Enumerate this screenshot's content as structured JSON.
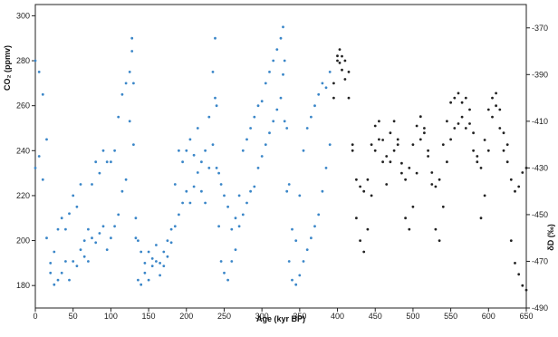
{
  "chart_data": {
    "type": "scatter",
    "title": "",
    "xlabel": "Age (kyr BP)",
    "ylabel_left": "CO₂ (ppmv)",
    "ylabel_right": "δD (‰)",
    "xlim": [
      0,
      650
    ],
    "ylim_left": [
      170,
      305
    ],
    "ylim_right": [
      -490,
      -360
    ],
    "right_axis_inverted": true,
    "grid": false,
    "legend": "none",
    "x_ticks": [
      0,
      50,
      100,
      150,
      200,
      250,
      300,
      350,
      400,
      450,
      500,
      550,
      600,
      650
    ],
    "y_left_ticks": [
      180,
      200,
      220,
      240,
      260,
      280,
      300
    ],
    "y_right_ticks": [
      -370,
      -390,
      -410,
      -430,
      -450,
      -470,
      -490
    ],
    "colors": {
      "recent_series": "#3a86c8",
      "older_series": "#222222",
      "axis": "#222222"
    },
    "series": [
      {
        "axis": "left",
        "color": "#3a86c8",
        "x": [
          0,
          5,
          10,
          15,
          20,
          25,
          30,
          35,
          40,
          45,
          50,
          55,
          60,
          65,
          70,
          75,
          80,
          85,
          90,
          95,
          100,
          105,
          110,
          115,
          120,
          125,
          128,
          130,
          133,
          136,
          140,
          145,
          150,
          155,
          160,
          165,
          170,
          175,
          180,
          185,
          190,
          195,
          200,
          205,
          210,
          215,
          220,
          225,
          230,
          235,
          238,
          240,
          243,
          246,
          250,
          255,
          260,
          265,
          270,
          275,
          280,
          285,
          290,
          295,
          300,
          305,
          310,
          315,
          320,
          325,
          328,
          330,
          333,
          336,
          340,
          345,
          350,
          355,
          360,
          365,
          370,
          375,
          380,
          385,
          390
        ],
        "y": [
          280,
          275,
          265,
          245,
          190,
          195,
          205,
          210,
          205,
          212,
          220,
          215,
          225,
          200,
          205,
          225,
          235,
          230,
          240,
          235,
          235,
          240,
          255,
          265,
          270,
          275,
          290,
          270,
          210,
          200,
          195,
          190,
          195,
          192,
          198,
          190,
          195,
          200,
          205,
          225,
          240,
          235,
          240,
          245,
          238,
          250,
          235,
          240,
          255,
          275,
          290,
          260,
          230,
          225,
          220,
          215,
          205,
          210,
          220,
          240,
          245,
          250,
          255,
          260,
          262,
          270,
          275,
          280,
          285,
          290,
          295,
          280,
          250,
          225,
          205,
          200,
          220,
          240,
          250,
          255,
          260,
          265,
          270,
          268,
          275
        ]
      },
      {
        "axis": "left",
        "color": "#222222",
        "x": [
          395,
          400,
          403,
          406,
          410,
          415,
          420,
          425,
          430,
          435,
          440,
          445,
          450,
          455,
          460,
          465,
          470,
          475,
          480,
          485,
          490,
          495,
          500,
          505,
          510,
          515,
          520,
          525,
          530,
          535,
          540,
          545,
          550,
          555,
          560,
          565,
          570,
          575,
          580,
          585,
          590,
          595,
          600,
          605,
          610,
          615,
          620,
          625,
          630,
          635,
          640,
          645,
          650
        ],
        "y": [
          270,
          280,
          285,
          282,
          280,
          275,
          240,
          210,
          200,
          195,
          205,
          220,
          240,
          245,
          235,
          225,
          235,
          240,
          245,
          230,
          210,
          205,
          215,
          230,
          245,
          250,
          240,
          225,
          205,
          200,
          215,
          235,
          245,
          250,
          252,
          255,
          250,
          252,
          240,
          235,
          210,
          220,
          240,
          255,
          260,
          250,
          240,
          235,
          200,
          190,
          185,
          180,
          178
        ]
      },
      {
        "axis": "right",
        "color": "#3a86c8",
        "x": [
          0,
          5,
          10,
          15,
          20,
          25,
          30,
          35,
          40,
          45,
          50,
          55,
          60,
          65,
          70,
          75,
          80,
          85,
          90,
          95,
          100,
          105,
          110,
          115,
          120,
          125,
          128,
          130,
          133,
          136,
          140,
          145,
          150,
          155,
          160,
          165,
          170,
          175,
          180,
          185,
          190,
          195,
          200,
          205,
          210,
          215,
          220,
          225,
          230,
          235,
          238,
          240,
          243,
          246,
          250,
          255,
          260,
          265,
          270,
          275,
          280,
          285,
          290,
          295,
          300,
          305,
          310,
          315,
          320,
          325,
          328,
          330,
          333,
          336,
          340,
          345,
          350,
          355,
          360,
          365,
          370,
          375,
          380,
          385,
          390
        ],
        "y": [
          -430,
          -425,
          -435,
          -460,
          -475,
          -480,
          -478,
          -475,
          -470,
          -478,
          -470,
          -472,
          -465,
          -468,
          -470,
          -460,
          -462,
          -458,
          -455,
          -465,
          -460,
          -455,
          -450,
          -440,
          -435,
          -410,
          -380,
          -420,
          -460,
          -478,
          -480,
          -475,
          -478,
          -472,
          -470,
          -476,
          -472,
          -468,
          -462,
          -455,
          -450,
          -445,
          -440,
          -445,
          -438,
          -432,
          -440,
          -445,
          -430,
          -420,
          -400,
          -430,
          -455,
          -470,
          -475,
          -478,
          -470,
          -465,
          -455,
          -450,
          -445,
          -440,
          -438,
          -430,
          -425,
          -420,
          -415,
          -410,
          -405,
          -400,
          -390,
          -410,
          -440,
          -470,
          -478,
          -480,
          -476,
          -470,
          -465,
          -460,
          -455,
          -450,
          -440,
          -430,
          -420
        ]
      },
      {
        "axis": "right",
        "color": "#222222",
        "x": [
          395,
          400,
          403,
          406,
          410,
          415,
          420,
          425,
          430,
          435,
          440,
          445,
          450,
          455,
          460,
          465,
          470,
          475,
          480,
          485,
          490,
          495,
          500,
          505,
          510,
          515,
          520,
          525,
          530,
          535,
          540,
          545,
          550,
          555,
          560,
          565,
          570,
          575,
          580,
          585,
          590,
          595,
          600,
          605,
          610,
          615,
          620,
          625,
          630,
          635,
          640,
          645,
          650
        ],
        "y": [
          -400,
          -382,
          -385,
          -388,
          -392,
          -400,
          -420,
          -435,
          -438,
          -440,
          -435,
          -420,
          -412,
          -410,
          -418,
          -425,
          -415,
          -410,
          -420,
          -428,
          -435,
          -430,
          -420,
          -412,
          -408,
          -415,
          -425,
          -432,
          -438,
          -435,
          -420,
          -410,
          -402,
          -400,
          -398,
          -402,
          -400,
          -405,
          -415,
          -425,
          -430,
          -418,
          -405,
          -400,
          -398,
          -405,
          -415,
          -420,
          -435,
          -440,
          -438,
          -432,
          -430
        ]
      }
    ]
  }
}
